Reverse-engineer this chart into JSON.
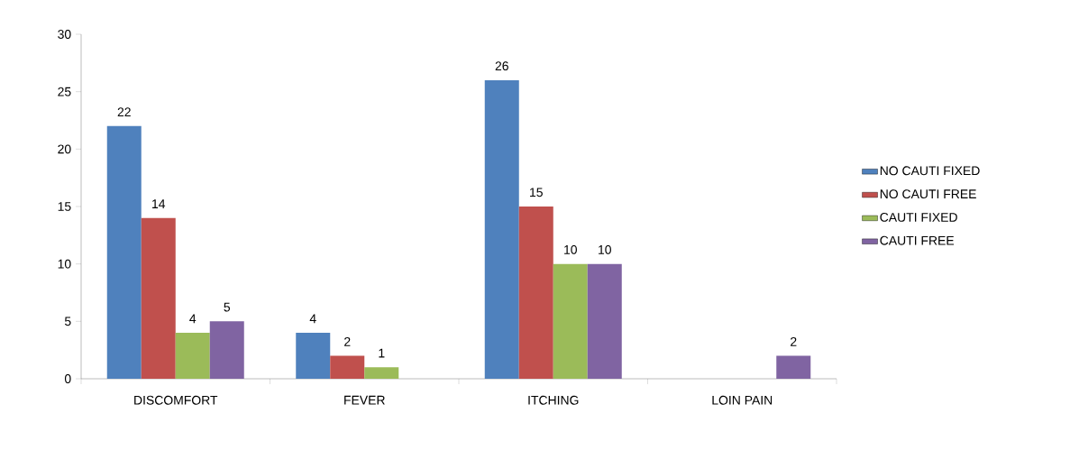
{
  "chart_data": {
    "type": "bar",
    "categories": [
      "DISCOMFORT",
      "FEVER",
      "ITCHING",
      "LOIN PAIN"
    ],
    "series": [
      {
        "name": "NO CAUTI FIXED",
        "color": "#4f81bd",
        "values": [
          22,
          4,
          26,
          0
        ],
        "value_labels": [
          "22",
          "4",
          "26",
          null
        ]
      },
      {
        "name": "NO CAUTI FREE",
        "color": "#c0504d",
        "values": [
          14,
          2,
          15,
          0
        ],
        "value_labels": [
          "14",
          "2",
          "15",
          null
        ]
      },
      {
        "name": "CAUTI FIXED",
        "color": "#9bbb59",
        "values": [
          4,
          1,
          10,
          0
        ],
        "value_labels": [
          "4",
          "1",
          "10",
          null
        ]
      },
      {
        "name": "CAUTI FREE",
        "color": "#8064a2",
        "values": [
          5,
          0,
          10,
          2
        ],
        "value_labels": [
          "5",
          null,
          "10",
          "2"
        ]
      }
    ],
    "ylim": [
      0,
      30
    ],
    "yticks": [
      0,
      5,
      10,
      15,
      20,
      25,
      30
    ],
    "legend": "right"
  }
}
